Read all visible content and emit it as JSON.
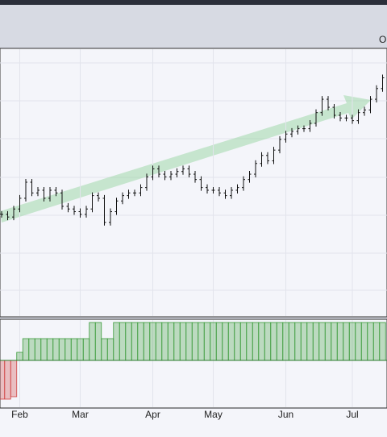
{
  "chart_data": {
    "type": "ohlc",
    "header_label": "O:",
    "categories": [
      null,
      null,
      null,
      "Feb",
      null,
      null,
      null,
      null,
      null,
      null,
      null,
      null,
      null,
      "Mar",
      null,
      null,
      null,
      null,
      null,
      null,
      null,
      null,
      null,
      null,
      null,
      "Apr",
      null,
      null,
      null,
      null,
      null,
      null,
      null,
      null,
      null,
      "May",
      null,
      null,
      null,
      null,
      null,
      null,
      null,
      null,
      null,
      null,
      null,
      "Jun",
      null,
      null,
      null,
      null,
      null,
      null,
      null,
      null,
      null,
      null,
      "Jul",
      null,
      null,
      null,
      null,
      null
    ],
    "values": [
      38,
      37,
      40,
      44,
      50,
      46,
      47,
      44,
      47,
      46,
      41,
      40,
      39,
      38,
      40,
      45,
      44,
      35,
      39,
      43,
      45,
      46,
      46,
      48,
      52,
      55,
      53,
      52,
      53,
      54,
      55,
      53,
      51,
      48,
      47,
      47,
      46,
      45,
      47,
      48,
      51,
      53,
      57,
      60,
      58,
      62,
      66,
      68,
      69,
      70,
      70,
      72,
      76,
      81,
      78,
      75,
      74,
      74,
      73,
      76,
      77,
      81,
      85,
      89
    ],
    "ylim": [
      0,
      100
    ],
    "indicator": {
      "type": "histogram",
      "positive_color": "#3a9a3a",
      "negative_color": "#d04040",
      "values": [
        -48,
        -48,
        -45,
        10,
        27,
        27,
        27,
        27,
        27,
        27,
        27,
        27,
        27,
        27,
        27,
        47,
        47,
        27,
        27,
        47,
        47,
        47,
        47,
        47,
        47,
        47,
        47,
        47,
        47,
        47,
        47,
        47,
        47,
        47,
        47,
        47,
        47,
        47,
        47,
        47,
        47,
        47,
        47,
        47,
        47,
        47,
        47,
        47,
        47,
        47,
        47,
        47,
        47,
        47,
        47,
        47,
        47,
        47,
        47,
        47,
        47,
        47,
        47,
        47
      ],
      "y2lim": [
        -50,
        50
      ]
    },
    "color": "#111111",
    "grid": true
  }
}
